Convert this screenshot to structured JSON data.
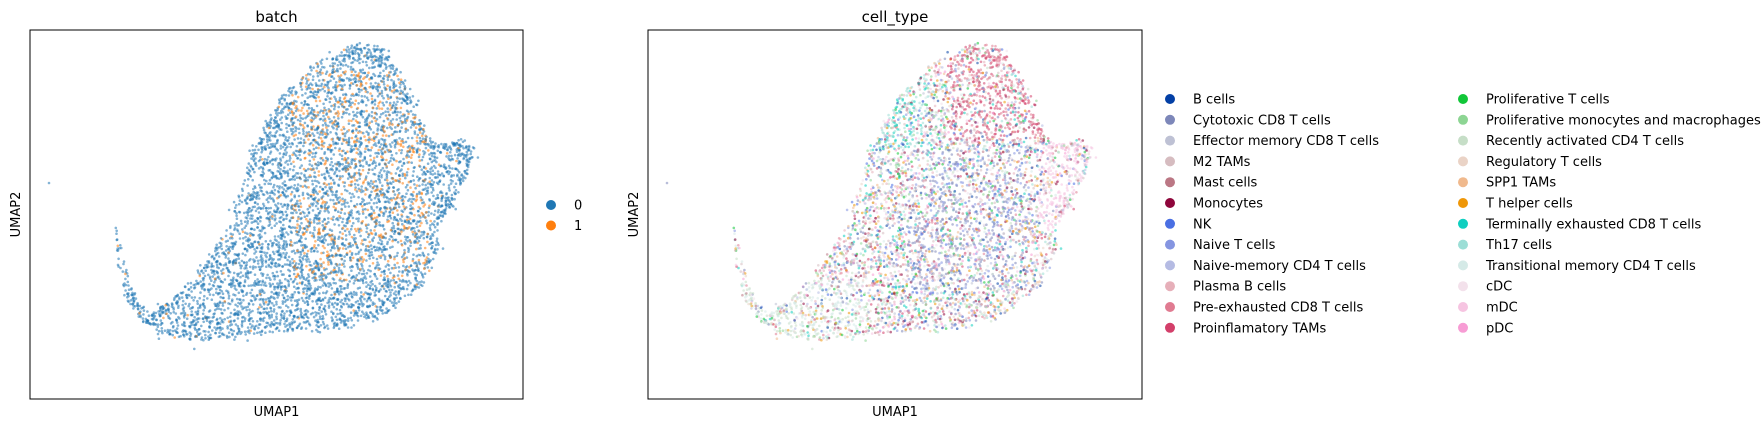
{
  "chart_data": [
    {
      "type": "scatter",
      "title": "batch",
      "xlabel": "UMAP1",
      "ylabel": "UMAP2",
      "ticks": "none",
      "grid": false,
      "legend_position": "right",
      "series": [
        {
          "name": "0",
          "color": "#1f77b4"
        },
        {
          "name": "1",
          "color": "#ff7f0e"
        }
      ]
    },
    {
      "type": "scatter",
      "title": "cell_type",
      "xlabel": "UMAP1",
      "ylabel": "UMAP2",
      "ticks": "none",
      "grid": false,
      "legend_position": "right",
      "legend_columns": 2,
      "series": [
        {
          "name": "B cells",
          "color": "#023fa5"
        },
        {
          "name": "Cytotoxic CD8 T cells",
          "color": "#7d87b9"
        },
        {
          "name": "Effector memory CD8 T cells",
          "color": "#bec1d4"
        },
        {
          "name": "M2 TAMs",
          "color": "#d6bcc0"
        },
        {
          "name": "Mast cells",
          "color": "#bb7784"
        },
        {
          "name": "Monocytes",
          "color": "#8e063b"
        },
        {
          "name": "NK",
          "color": "#4a6fe3"
        },
        {
          "name": "Naive T cells",
          "color": "#8595e1"
        },
        {
          "name": "Naive-memory CD4 T cells",
          "color": "#b5bbe3"
        },
        {
          "name": "Plasma B cells",
          "color": "#e6afb9"
        },
        {
          "name": "Pre-exhausted CD8 T cells",
          "color": "#e07b91"
        },
        {
          "name": "Proinflamatory TAMs",
          "color": "#d33f6a"
        },
        {
          "name": "Proliferative T cells",
          "color": "#11c638"
        },
        {
          "name": "Proliferative monocytes and macrophages",
          "color": "#8dd593"
        },
        {
          "name": "Recently activated CD4 T cells",
          "color": "#c6dec7"
        },
        {
          "name": "Regulatory T cells",
          "color": "#ead3c6"
        },
        {
          "name": "SPP1 TAMs",
          "color": "#f0b98d"
        },
        {
          "name": "T helper cells",
          "color": "#ef9708"
        },
        {
          "name": "Terminally exhausted CD8 T cells",
          "color": "#0fcfc0"
        },
        {
          "name": "Th17 cells",
          "color": "#9cded6"
        },
        {
          "name": "Transitional memory CD4 T cells",
          "color": "#d5eae7"
        },
        {
          "name": "cDC",
          "color": "#f3e1eb"
        },
        {
          "name": "mDC",
          "color": "#f6c4e1"
        },
        {
          "name": "pDC",
          "color": "#f79cd4"
        }
      ]
    }
  ]
}
